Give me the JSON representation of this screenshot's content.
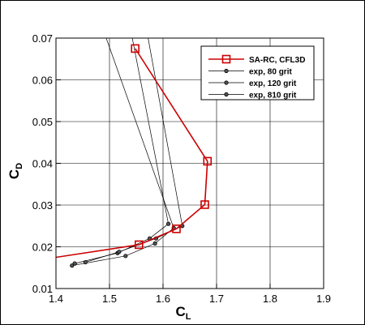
{
  "chart_data": {
    "type": "line",
    "xlabel": "C",
    "xlabel_sub": "L",
    "ylabel": "C",
    "ylabel_sub": "D",
    "xlim": [
      1.4,
      1.9
    ],
    "ylim": [
      0.01,
      0.07
    ],
    "grid": true,
    "legend_position": "top-right",
    "x_ticks": [
      "1.4",
      "1.5",
      "1.6",
      "1.7",
      "1.8",
      "1.9"
    ],
    "y_ticks": [
      "0.01",
      "0.02",
      "0.03",
      "0.04",
      "0.05",
      "0.06",
      "0.07"
    ],
    "series": [
      {
        "name": "SA-RC, CFL3D",
        "color": "#cc0000",
        "marker": "square-open",
        "points": [
          [
            1.35,
            0.0165
          ],
          [
            1.555,
            0.0205
          ],
          [
            1.625,
            0.0243
          ],
          [
            1.678,
            0.0301
          ],
          [
            1.683,
            0.0405
          ],
          [
            1.548,
            0.0675
          ]
        ]
      },
      {
        "name": "exp, 80 grit",
        "color": "#000000",
        "marker": "circle",
        "points": [
          [
            1.43,
            0.0155
          ],
          [
            1.53,
            0.0178
          ],
          [
            1.585,
            0.0208
          ],
          [
            1.62,
            0.0245
          ],
          [
            1.48,
            0.075
          ]
        ]
      },
      {
        "name": "exp, 120 grit",
        "color": "#000000",
        "marker": "circle",
        "points": [
          [
            1.435,
            0.016
          ],
          [
            1.515,
            0.0185
          ],
          [
            1.575,
            0.022
          ],
          [
            1.61,
            0.0255
          ],
          [
            1.535,
            0.075
          ]
        ]
      },
      {
        "name": "exp, 810 grit",
        "color": "#000000",
        "marker": "circle",
        "points": [
          [
            1.455,
            0.0163
          ],
          [
            1.518,
            0.0188
          ],
          [
            1.587,
            0.022
          ],
          [
            1.636,
            0.025
          ],
          [
            1.565,
            0.075
          ]
        ]
      }
    ]
  }
}
